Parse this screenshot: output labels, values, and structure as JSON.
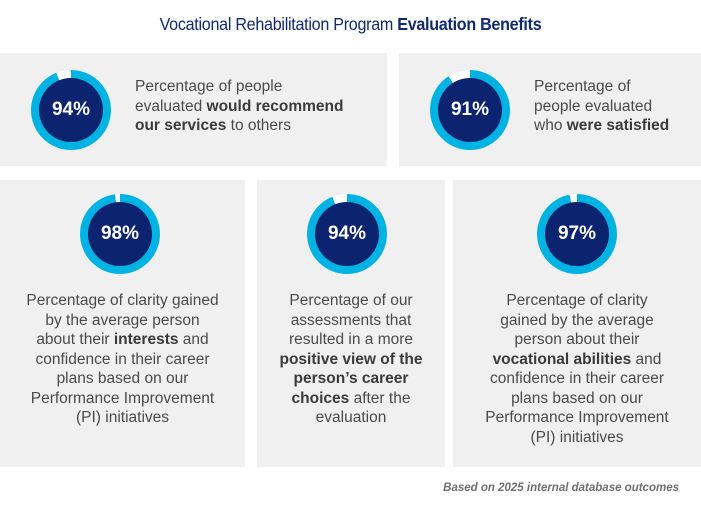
{
  "title": {
    "regular": "Vocational Rehabilitation Program",
    "bold": "Evaluation Benefits"
  },
  "colors": {
    "ring_fill": "#00b3e3",
    "ring_gap": "#ffffff",
    "circle_center": "#0c2470",
    "title": "#0f2a6e",
    "card_bg": "#f0f0f0",
    "body_text": "#4a4a4a",
    "footnote": "#707070"
  },
  "cards": [
    {
      "value": 94,
      "label": "94%",
      "text_parts": [
        {
          "t": "Percentage of people",
          "b": false,
          "br": true
        },
        {
          "t": "evaluated ",
          "b": false
        },
        {
          "t": "would recommend",
          "b": true,
          "br": true
        },
        {
          "t": "our services",
          "b": true
        },
        {
          "t": " to others",
          "b": false
        }
      ]
    },
    {
      "value": 91,
      "label": "91%",
      "text_parts": [
        {
          "t": "Percentage of",
          "b": false,
          "br": true
        },
        {
          "t": "people evaluated",
          "b": false,
          "br": true
        },
        {
          "t": "who ",
          "b": false
        },
        {
          "t": "were satisfied",
          "b": true
        }
      ]
    },
    {
      "value": 98,
      "label": "98%",
      "text_parts": [
        {
          "t": "Percentage of clarity gained",
          "b": false,
          "br": true
        },
        {
          "t": "by the average person",
          "b": false,
          "br": true
        },
        {
          "t": "about their ",
          "b": false
        },
        {
          "t": "interests",
          "b": true
        },
        {
          "t": " and",
          "b": false,
          "br": true
        },
        {
          "t": "confidence in their career",
          "b": false,
          "br": true
        },
        {
          "t": "plans based on our",
          "b": false,
          "br": true
        },
        {
          "t": "Performance Improvement",
          "b": false,
          "br": true
        },
        {
          "t": "(PI) initiatives",
          "b": false
        }
      ]
    },
    {
      "value": 94,
      "label": "94%",
      "text_parts": [
        {
          "t": "Percentage of our",
          "b": false,
          "br": true
        },
        {
          "t": "assessments that",
          "b": false,
          "br": true
        },
        {
          "t": "resulted in a more",
          "b": false,
          "br": true
        },
        {
          "t": "positive view of the",
          "b": true,
          "br": true
        },
        {
          "t": "person’s career",
          "b": true,
          "br": true
        },
        {
          "t": "choices",
          "b": true
        },
        {
          "t": " after the",
          "b": false,
          "br": true
        },
        {
          "t": "evaluation",
          "b": false
        }
      ]
    },
    {
      "value": 97,
      "label": "97%",
      "text_parts": [
        {
          "t": "Percentage of clarity",
          "b": false,
          "br": true
        },
        {
          "t": "gained by the average",
          "b": false,
          "br": true
        },
        {
          "t": "person about their",
          "b": false,
          "br": true
        },
        {
          "t": "vocational abilities",
          "b": true
        },
        {
          "t": " and",
          "b": false,
          "br": true
        },
        {
          "t": "confidence in their career",
          "b": false,
          "br": true
        },
        {
          "t": "plans based on our",
          "b": false,
          "br": true
        },
        {
          "t": "Performance Improvement",
          "b": false,
          "br": true
        },
        {
          "t": "(PI) initiatives",
          "b": false
        }
      ]
    }
  ],
  "footnote": "Based on 2025 internal database outcomes"
}
